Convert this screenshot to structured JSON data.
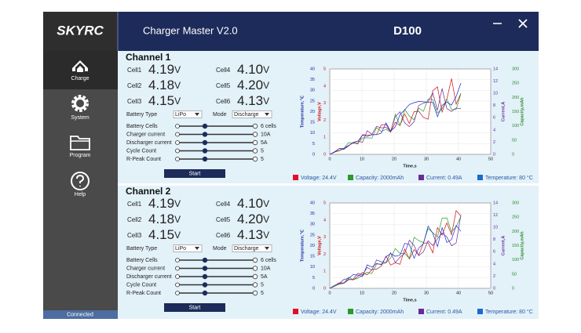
{
  "sidebar": {
    "logo": "SKYRC",
    "items": [
      "Charge",
      "System",
      "Program",
      "Help"
    ],
    "status": "Connected"
  },
  "header": {
    "title": "Charger Master V2.0",
    "device": "D100"
  },
  "channels": [
    {
      "title": "Channel 1",
      "cells": [
        {
          "label": "Cell1",
          "value": "4.19",
          "unit": "V"
        },
        {
          "label": "Cell2",
          "value": "4.18",
          "unit": "V"
        },
        {
          "label": "Cell3",
          "value": "4.15",
          "unit": "V"
        },
        {
          "label": "Cell4",
          "value": "4.10",
          "unit": "V"
        },
        {
          "label": "Cell5",
          "value": "4.20",
          "unit": "V"
        },
        {
          "label": "Cell6",
          "value": "4.13",
          "unit": "V"
        }
      ],
      "battery_type_label": "Battery Type",
      "battery_type": "LiPo",
      "mode_label": "Mode",
      "mode": "Discharge",
      "sliders": [
        {
          "label": "Battery Cells",
          "value": "6 cells"
        },
        {
          "label": "Charger current",
          "value": "10A"
        },
        {
          "label": "Discharger current",
          "value": "5A"
        },
        {
          "label": "Cycle Count",
          "value": "5"
        },
        {
          "label": "R-Peak Count",
          "value": "5"
        }
      ],
      "button": "Start",
      "chart": {
        "x_label": "Time,s",
        "xticks": [
          0,
          10,
          20,
          30,
          40,
          50
        ],
        "temperature_label": "Temperature,℃",
        "temperature_ticks": [
          0,
          5,
          10,
          15,
          20,
          25,
          30,
          35,
          40
        ],
        "voltage_label": "Voltage,V",
        "voltage_ticks": [
          0,
          1,
          2,
          3,
          4,
          5
        ],
        "current_label": "Current,A",
        "current_ticks": [
          0,
          2,
          4,
          6,
          8,
          10,
          12,
          14
        ],
        "capacity_label": "Capacity,mAh",
        "capacity_ticks": [
          0,
          50,
          100,
          150,
          200,
          250,
          300
        ],
        "legend": [
          "Voltage: 24.4V",
          "Capacity: 2000mAh",
          "Current: 0.49A",
          "Temperature: 80 °C"
        ]
      }
    },
    {
      "title": "Channel 2",
      "cells": [
        {
          "label": "Cell1",
          "value": "4.19",
          "unit": "V"
        },
        {
          "label": "Cell2",
          "value": "4.18",
          "unit": "V"
        },
        {
          "label": "Cell3",
          "value": "4.15",
          "unit": "V"
        },
        {
          "label": "Cell4",
          "value": "4.10",
          "unit": "V"
        },
        {
          "label": "Cell5",
          "value": "4.20",
          "unit": "V"
        },
        {
          "label": "Cell6",
          "value": "4.13",
          "unit": "V"
        }
      ],
      "battery_type_label": "Battery Type",
      "battery_type": "LiPo",
      "mode_label": "Mode",
      "mode": "Discharge",
      "sliders": [
        {
          "label": "Battery Cells",
          "value": "6 cells"
        },
        {
          "label": "Charger current",
          "value": "10A"
        },
        {
          "label": "Discharger current",
          "value": "5A"
        },
        {
          "label": "Cycle Count",
          "value": "5"
        },
        {
          "label": "R-Peak Count",
          "value": "5"
        }
      ],
      "button": "Start",
      "chart": {
        "x_label": "Time,s",
        "xticks": [
          0,
          10,
          20,
          30,
          40,
          50
        ],
        "temperature_label": "Temperature,℃",
        "temperature_ticks": [
          0,
          5,
          10,
          15,
          20,
          25,
          30,
          35,
          40
        ],
        "voltage_label": "Voltage,V",
        "voltage_ticks": [
          0,
          1,
          2,
          3,
          4,
          5
        ],
        "current_label": "Current,A",
        "current_ticks": [
          0,
          2,
          4,
          6,
          8,
          10,
          12,
          14
        ],
        "capacity_label": "Capacity,mAh",
        "capacity_ticks": [
          0,
          50,
          100,
          150,
          200,
          250,
          300
        ],
        "legend": [
          "Voltage: 24.4V",
          "Capacity: 2000mAh",
          "Current: 0.49A",
          "Temperature: 80 °C"
        ]
      }
    }
  ]
}
